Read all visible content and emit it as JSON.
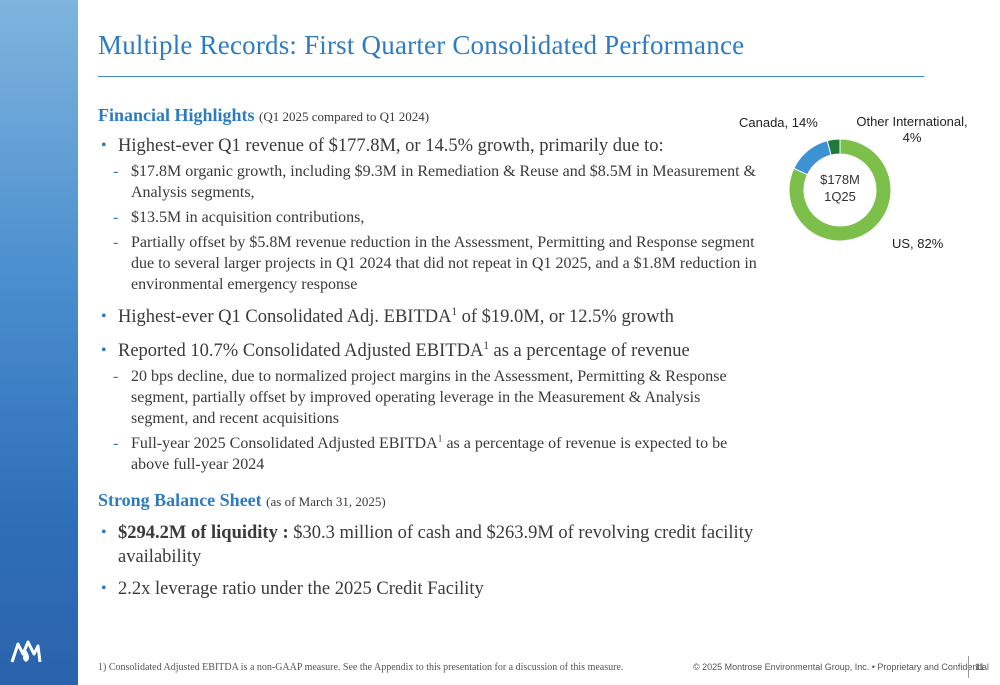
{
  "title": "Multiple Records: First Quarter Consolidated Performance",
  "financial": {
    "heading": "Financial Highlights",
    "subheading": "(Q1 2025 compared to Q1 2024)",
    "b1": "Highest-ever Q1 revenue of $177.8M, or 14.5% growth, primarily due to:",
    "b1_subs": [
      "$17.8M organic growth, including $9.3M in Remediation & Reuse and $8.5M in Measurement & Analysis segments,",
      "$13.5M in acquisition contributions,",
      "Partially offset by $5.8M revenue reduction in the Assessment, Permitting and Response segment due to several larger projects in Q1 2024 that did not repeat in Q1 2025, and a $1.8M reduction in environmental emergency response"
    ],
    "b2_pre": "Highest-ever Q1 Consolidated Adj. EBITDA",
    "b2_sup": "1",
    "b2_post": " of $19.0M, or 12.5% growth",
    "b3_pre": "Reported 10.7% Consolidated Adjusted EBITDA",
    "b3_sup": "1",
    "b3_post": " as a percentage of revenue",
    "b3_sub1": "20 bps decline, due to normalized project margins in the Assessment, Permitting & Response segment, partially offset by improved operating leverage in the Measurement & Analysis segment, and recent acquisitions",
    "b3_sub2_pre": "Full-year 2025 Consolidated Adjusted EBITDA",
    "b3_sub2_sup": "1",
    "b3_sub2_post": " as a percentage of revenue is expected to be above full-year 2024"
  },
  "balance": {
    "heading": "Strong Balance Sheet",
    "subheading": "(as of March 31, 2025)",
    "b1_bold": "$294.2M of liquidity :",
    "b1_rest": " $30.3 million of cash and $263.9M of revolving credit facility availability",
    "b2": "2.2x leverage ratio under the 2025 Credit Facility"
  },
  "bullet_char": "•",
  "dash_char": "-",
  "chart_data": {
    "type": "pie",
    "donut": true,
    "center_label": [
      "$178M",
      "1Q25"
    ],
    "slices": [
      {
        "label": "US, 82%",
        "value": 82,
        "color": "#7cc04b"
      },
      {
        "label": "Canada, 14%",
        "value": 14,
        "color": "#3d92d4"
      },
      {
        "label": "Other International, 4%",
        "value": 4,
        "color": "#1e7a3c"
      }
    ]
  },
  "footer": {
    "footnote": "1) Consolidated Adjusted EBITDA is a non-GAAP measure. See the Appendix to this presentation for a discussion of this measure.",
    "copyright": "© 2025 Montrose Environmental Group, Inc. • Proprietary and Confidential",
    "page_number": "11"
  },
  "colors": {
    "accent": "#2d7cc2",
    "sidebar": "#3a7cc3"
  }
}
